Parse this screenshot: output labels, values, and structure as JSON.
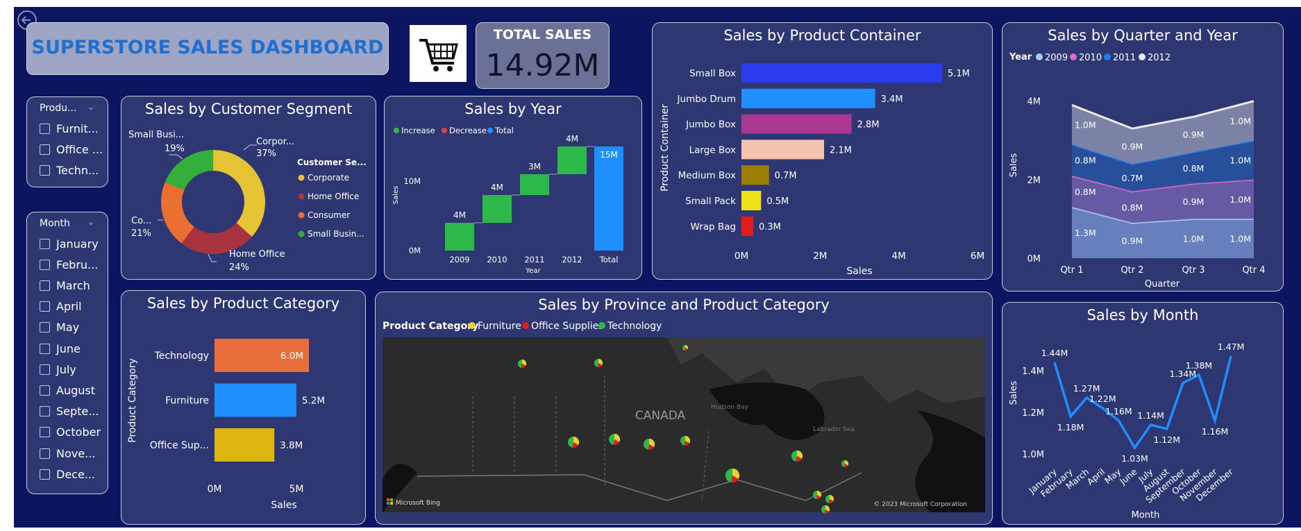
{
  "header": {
    "title": "SUPERSTORE SALES DASHBOARD",
    "kpi_label": "TOTAL SALES",
    "kpi_value": "14.92M",
    "back_icon": "back-arrow-icon",
    "logo_icon": "shopping-cart-icon"
  },
  "product_slicer": {
    "title": "Produ...",
    "items": [
      "Furnit...",
      "Office ...",
      "Techn..."
    ]
  },
  "month_slicer": {
    "title": "Month",
    "items": [
      "January",
      "Febru...",
      "March",
      "April",
      "May",
      "June",
      "July",
      "August",
      "Septe...",
      "October",
      "Nove...",
      "Dece..."
    ]
  },
  "segment": {
    "title": "Sales by Customer Segment",
    "legend_title": "Customer Se...",
    "labels": {
      "corporate_name": "Corpor...",
      "corporate_pct": "37%",
      "small_name": "Small Busi...",
      "small_pct": "19%",
      "consumer_name": "Co...",
      "consumer_pct": "21%",
      "home_name": "Home Office",
      "home_pct": "24%"
    },
    "legend": [
      "Corporate",
      "Home Office",
      "Consumer",
      "Small Busin..."
    ]
  },
  "year": {
    "title": "Sales by Year",
    "legend": [
      "Increase",
      "Decrease",
      "Total"
    ],
    "ylabel": "Sales",
    "xlabel": "Year",
    "yticks": [
      "0M",
      "10M"
    ]
  },
  "container": {
    "title": "Sales by Product Container",
    "ylabel": "Product Container",
    "xlabel": "Sales",
    "xticks": [
      "0M",
      "2M",
      "4M",
      "6M"
    ]
  },
  "quarter": {
    "title": "Sales by Quarter and Year",
    "legend_title": "Year",
    "legend": [
      "2009",
      "2010",
      "2011",
      "2012"
    ],
    "ylabel": "Sales",
    "xlabel": "Quarter",
    "yticks": [
      "0M",
      "2M",
      "4M"
    ]
  },
  "category": {
    "title": "Sales by Product Category",
    "ylabel": "Product Category",
    "xlabel": "Sales",
    "xticks": [
      "0M",
      "5M"
    ]
  },
  "map": {
    "title": "Sales by Province and Product Category",
    "legend_title": "Product Category",
    "legend": [
      "Furniture",
      "Office Supplies",
      "Technology"
    ],
    "country_label": "CANADA",
    "hudson_label": "Hudson Bay",
    "labrador_label": "Labrador Sea",
    "bing_label": "Microsoft Bing",
    "copyright": "© 2023 Microsoft Corporation"
  },
  "month": {
    "title": "Sales by Month",
    "ylabel": "Sales",
    "xlabel": "Month",
    "yticks": [
      "1.0M",
      "1.2M",
      "1.4M"
    ]
  },
  "colors": {
    "background": "#0b1560",
    "card": "#2e3772",
    "title_text": "#1f6fd1",
    "increase": "#2db94a",
    "decrease": "#e0404a",
    "total": "#1f8fff"
  },
  "chart_data": [
    {
      "type": "pie",
      "title": "Sales by Customer Segment",
      "categories": [
        "Corporate",
        "Home Office",
        "Consumer",
        "Small Business"
      ],
      "values": [
        37,
        24,
        21,
        19
      ],
      "colors": [
        "#e5c334",
        "#a93240",
        "#e96f33",
        "#36ae3c"
      ]
    },
    {
      "type": "bar",
      "title": "Sales by Year",
      "categories": [
        "2009",
        "2010",
        "2011",
        "2012",
        "Total"
      ],
      "values": [
        4,
        4,
        3,
        4,
        15
      ],
      "labels": [
        "4M",
        "4M",
        "3M",
        "4M",
        "15M"
      ],
      "ylim": [
        0,
        15
      ]
    },
    {
      "type": "bar",
      "title": "Sales by Product Container",
      "categories": [
        "Small Box",
        "Jumbo Drum",
        "Jumbo Box",
        "Large Box",
        "Medium Box",
        "Small Pack",
        "Wrap Bag"
      ],
      "values": [
        5.1,
        3.4,
        2.8,
        2.1,
        0.7,
        0.5,
        0.3
      ],
      "labels": [
        "5.1M",
        "3.4M",
        "2.8M",
        "2.1M",
        "0.7M",
        "0.5M",
        "0.3M"
      ],
      "colors": [
        "#2b3cee",
        "#1f8fff",
        "#a83890",
        "#f3c3af",
        "#9c8006",
        "#ede21a",
        "#e01c1c"
      ],
      "xlim": [
        0,
        6
      ]
    },
    {
      "type": "area",
      "title": "Sales by Quarter and Year",
      "categories": [
        "Qtr 1",
        "Qtr 2",
        "Qtr 3",
        "Qtr 4"
      ],
      "series": [
        {
          "name": "2009",
          "values": [
            1.3,
            0.9,
            1.0,
            1.0
          ],
          "labels": [
            "1.3M",
            "0.9M",
            "1.0M",
            "1.0M"
          ],
          "color": "#a9cdf5"
        },
        {
          "name": "2010",
          "values": [
            0.8,
            0.8,
            0.9,
            1.0
          ],
          "labels": [
            "0.8M",
            "0.8M",
            "0.9M",
            "1.0M"
          ],
          "color": "#de6bc6"
        },
        {
          "name": "2011",
          "values": [
            0.8,
            0.7,
            0.8,
            1.0
          ],
          "labels": [
            "0.8M",
            "0.7M",
            "0.8M",
            "1.0M"
          ],
          "color": "#1f7fe8"
        },
        {
          "name": "2012",
          "values": [
            1.0,
            0.9,
            0.9,
            1.0
          ],
          "labels": [
            "1.0M",
            "0.9M",
            "0.9M",
            "1.0M"
          ],
          "color": "#e9e9ee"
        }
      ],
      "ylim": [
        0,
        4.4
      ]
    },
    {
      "type": "bar",
      "title": "Sales by Product Category",
      "categories": [
        "Technology",
        "Furniture",
        "Office Sup..."
      ],
      "values": [
        6.0,
        5.2,
        3.8
      ],
      "labels": [
        "6.0M",
        "5.2M",
        "3.8M"
      ],
      "colors": [
        "#e96f3a",
        "#1f8fff",
        "#ddb50f"
      ],
      "xlim": [
        0,
        7.5
      ]
    },
    {
      "type": "line",
      "title": "Sales by Month",
      "categories": [
        "January",
        "February",
        "March",
        "April",
        "May",
        "June",
        "July",
        "August",
        "September",
        "October",
        "November",
        "December"
      ],
      "values": [
        1.44,
        1.18,
        1.27,
        1.22,
        1.16,
        1.03,
        1.14,
        1.12,
        1.34,
        1.38,
        1.16,
        1.47
      ],
      "labels": [
        "1.44M",
        "1.18M",
        "1.27M",
        "1.22M",
        "1.16M",
        "1.03M",
        "1.14M",
        "1.12M",
        "1.34M",
        "1.38M",
        "1.16M",
        "1.47M"
      ],
      "ylim": [
        0.99,
        1.5
      ]
    }
  ]
}
